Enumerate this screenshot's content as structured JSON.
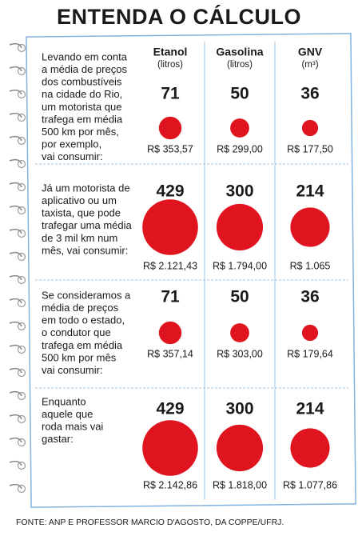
{
  "title": "ENTENDA O CÁLCULO",
  "columns": [
    {
      "name": "Etanol",
      "unit": "(litros)"
    },
    {
      "name": "Gasolina",
      "unit": "(litros)"
    },
    {
      "name": "GNV",
      "unit": "(m³)"
    }
  ],
  "rows": [
    {
      "lines": [
        "Levando em conta",
        "a média de preços",
        "dos combustíveis",
        "na cidade do Rio,",
        "um motorista que",
        "trafega em média",
        "500 km por mês,",
        "por exemplo,",
        "vai consumir:"
      ],
      "values": [
        71,
        50,
        36
      ],
      "costs": [
        "R$ 353,57",
        "R$ 299,00",
        "R$ 177,50"
      ]
    },
    {
      "lines": [
        "Já um motorista de",
        "aplicativo ou um",
        "taxista, que pode",
        "trafegar uma média",
        "de 3 mil km num",
        "mês, vai consumir:"
      ],
      "values": [
        429,
        300,
        214
      ],
      "costs": [
        "R$ 2.121,43",
        "R$ 1.794,00",
        "R$ 1.065"
      ]
    },
    {
      "lines": [
        "Se consideramos a",
        "média de preços",
        "em todo o estado,",
        "o condutor que",
        "trafega em média",
        "500 km por mês",
        "vai consumir:"
      ],
      "values": [
        71,
        50,
        36
      ],
      "costs": [
        "R$ 357,14",
        "R$ 303,00",
        "R$ 179,64"
      ]
    },
    {
      "lines": [
        "Enquanto",
        "aquele que",
        "roda mais vai",
        "gastar:"
      ],
      "values": [
        429,
        300,
        214
      ],
      "costs": [
        "R$ 2.142,86",
        "R$ 1.818,00",
        "R$ 1.077,86"
      ]
    }
  ],
  "source": "FONTE: ANP E PROFESSOR MARCIO D'AGOSTO, DA COPPE/UFRJ."
}
